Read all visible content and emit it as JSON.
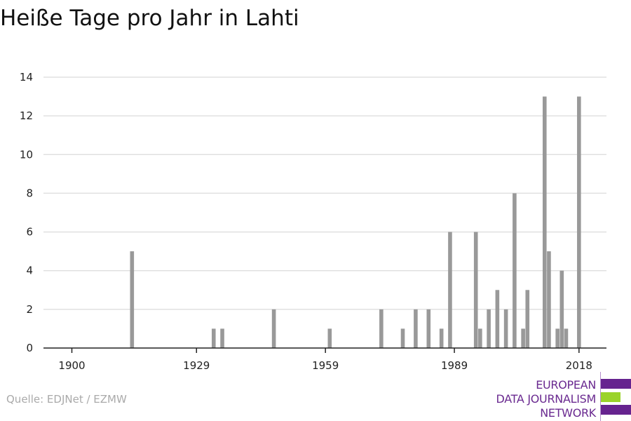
{
  "title": "Heiße Tage pro Jahr in Lahti",
  "source": "Quelle: EDJNet / EZMW",
  "logo": {
    "lines": [
      "EUROPEAN",
      "DATA JOURNALISM",
      "NETWORK"
    ],
    "colors": {
      "purple": "#66238f",
      "green": "#9ad32a"
    }
  },
  "chart_data": {
    "type": "bar",
    "title": "Heiße Tage pro Jahr in Lahti",
    "xlabel": "",
    "ylabel": "",
    "xlim": [
      1894,
      2024
    ],
    "ylim": [
      0,
      14
    ],
    "x_ticks": [
      1900,
      1929,
      1959,
      1989,
      2018
    ],
    "y_ticks": [
      0,
      2,
      4,
      6,
      8,
      10,
      12,
      14
    ],
    "grid": true,
    "bar_color": "#999999",
    "x": [
      1914,
      1933,
      1935,
      1947,
      1960,
      1972,
      1977,
      1980,
      1983,
      1986,
      1988,
      1994,
      1995,
      1997,
      1999,
      2001,
      2003,
      2005,
      2006,
      2010,
      2011,
      2013,
      2014,
      2015,
      2018
    ],
    "values": [
      5,
      1,
      1,
      2,
      1,
      2,
      1,
      2,
      2,
      1,
      6,
      6,
      1,
      2,
      3,
      2,
      8,
      1,
      3,
      13,
      5,
      1,
      4,
      1,
      13
    ]
  }
}
